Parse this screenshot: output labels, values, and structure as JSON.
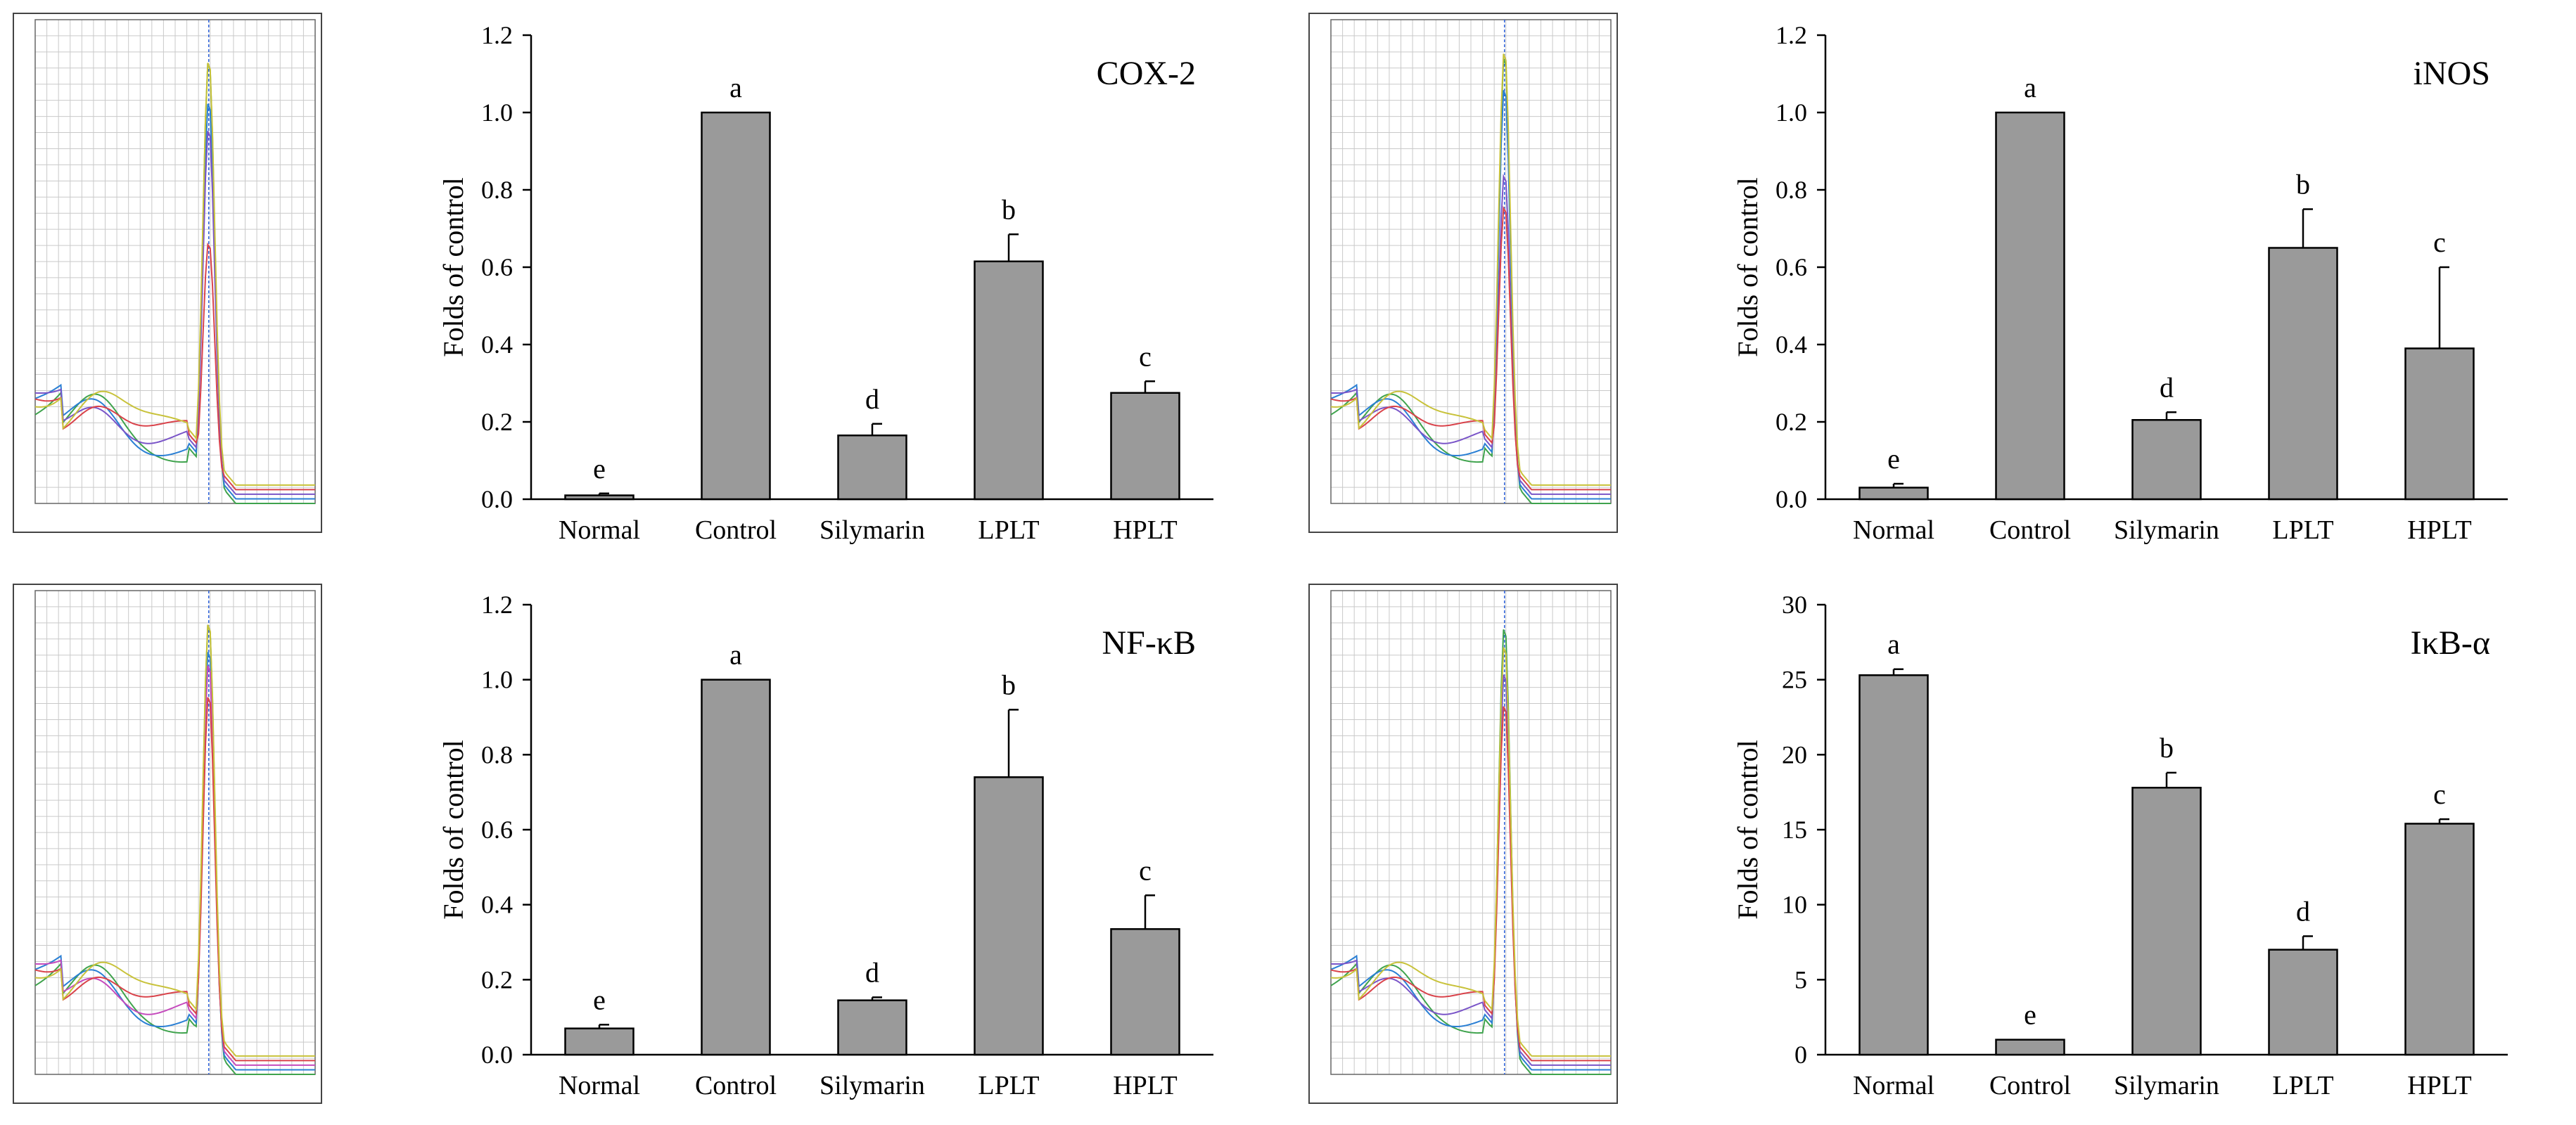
{
  "figure_title": "",
  "chart_data": [
    {
      "type": "bar",
      "title": "COX-2",
      "xlabel": "",
      "ylabel": "Folds of control",
      "categories": [
        "Normal",
        "Control",
        "Silymarin",
        "LPLT",
        "HPLT"
      ],
      "values": [
        0.01,
        1.0,
        0.165,
        0.615,
        0.275
      ],
      "errors": [
        0.005,
        0.0,
        0.03,
        0.07,
        0.03
      ],
      "labels": [
        "e",
        "a",
        "d",
        "b",
        "c"
      ],
      "ylim": [
        0,
        1.2
      ],
      "yticks": [
        "0.0",
        "0.2",
        "0.4",
        "0.6",
        "0.8",
        "1.0",
        "1.2"
      ],
      "bar_color": "#9a9a9a"
    },
    {
      "type": "bar",
      "title": "iNOS",
      "xlabel": "",
      "ylabel": "Folds of control",
      "categories": [
        "Normal",
        "Control",
        "Silymarin",
        "LPLT",
        "HPLT"
      ],
      "values": [
        0.03,
        1.0,
        0.205,
        0.65,
        0.39
      ],
      "errors": [
        0.01,
        0.0,
        0.02,
        0.1,
        0.21
      ],
      "labels": [
        "e",
        "a",
        "d",
        "b",
        "c"
      ],
      "ylim": [
        0,
        1.2
      ],
      "yticks": [
        "0.0",
        "0.2",
        "0.4",
        "0.6",
        "0.8",
        "1.0",
        "1.2"
      ],
      "bar_color": "#9a9a9a"
    },
    {
      "type": "bar",
      "title": "NF-κB",
      "xlabel": "",
      "ylabel": "Folds of control",
      "categories": [
        "Normal",
        "Control",
        "Silymarin",
        "LPLT",
        "HPLT"
      ],
      "values": [
        0.07,
        1.0,
        0.145,
        0.74,
        0.335
      ],
      "errors": [
        0.01,
        0.0,
        0.008,
        0.18,
        0.09
      ],
      "labels": [
        "e",
        "a",
        "d",
        "b",
        "c"
      ],
      "ylim": [
        0,
        1.2
      ],
      "yticks": [
        "0.0",
        "0.2",
        "0.4",
        "0.6",
        "0.8",
        "1.0",
        "1.2"
      ],
      "bar_color": "#9a9a9a"
    },
    {
      "type": "bar",
      "title": "IκB-α",
      "xlabel": "",
      "ylabel": "Folds of control",
      "categories": [
        "Normal",
        "Control",
        "Silymarin",
        "LPLT",
        "HPLT"
      ],
      "values": [
        25.3,
        1.0,
        17.8,
        7.0,
        15.4
      ],
      "errors": [
        0.4,
        0.0,
        1.0,
        0.9,
        0.3
      ],
      "labels": [
        "a",
        "e",
        "b",
        "d",
        "c"
      ],
      "ylim": [
        0,
        30
      ],
      "yticks": [
        "0",
        "5",
        "10",
        "15",
        "20",
        "25",
        "30"
      ],
      "bar_color": "#9a9a9a"
    }
  ],
  "melt_curves": [
    {
      "name": "COX-2 melt curve",
      "peak_curves": [
        0.97,
        0.87,
        0.8,
        0.54,
        0.93
      ],
      "colors": [
        "#3fa34d",
        "#2a7fd4",
        "#7a55c8",
        "#d9434b",
        "#c8c23a"
      ]
    },
    {
      "name": "iNOS melt curve",
      "peak_curves": [
        0.98,
        0.9,
        0.7,
        0.62,
        0.95
      ],
      "colors": [
        "#3fa34d",
        "#2a7fd4",
        "#7a55c8",
        "#d9434b",
        "#c8c23a"
      ]
    },
    {
      "name": "NF-κB melt curve",
      "peak_curves": [
        0.99,
        0.92,
        0.88,
        0.8,
        0.95
      ],
      "colors": [
        "#3fa34d",
        "#2a7fd4",
        "#c54bbd",
        "#d9434b",
        "#c8c23a"
      ]
    },
    {
      "name": "IκB-α melt curve",
      "peak_curves": [
        0.98,
        0.93,
        0.86,
        0.78,
        0.9
      ],
      "colors": [
        "#3fa34d",
        "#2a7fd4",
        "#7a55c8",
        "#d9434b",
        "#c8c23a"
      ]
    }
  ]
}
